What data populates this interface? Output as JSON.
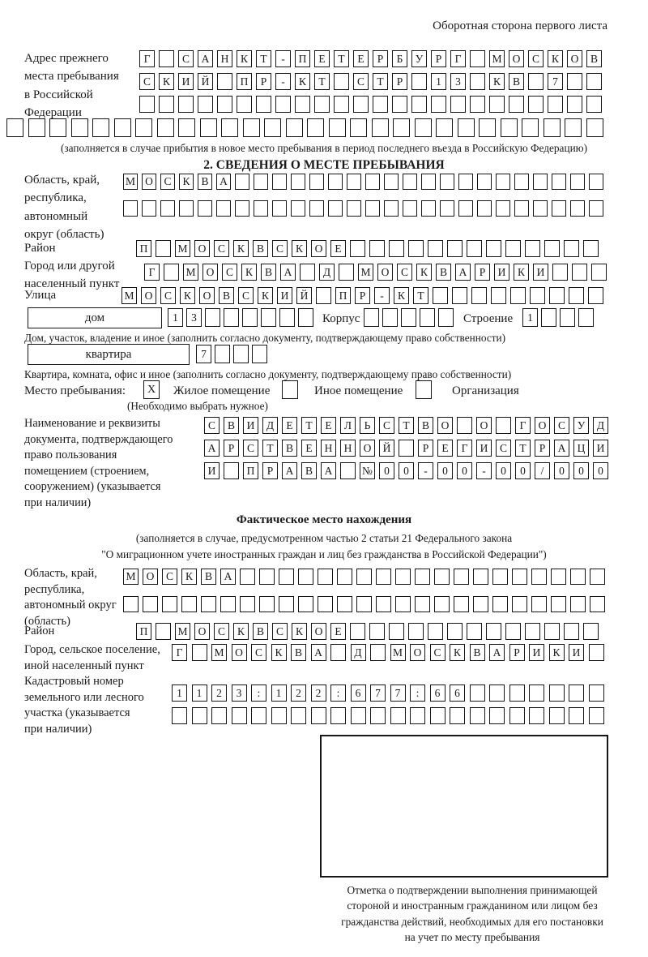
{
  "page_note": "Оборотная сторона первого листа",
  "prev_address": {
    "label_lines": [
      "Адрес прежнего",
      "места пребывания",
      "в Российской",
      "Федерации"
    ],
    "rows": [
      {
        "text": "Г САНКТ-ПЕТЕРБУРГ МОСКОВ",
        "len": 24
      },
      {
        "text": "СКИЙ ПР-КТ СТР 13 КВ 7",
        "len": 24
      },
      {
        "text": "",
        "len": 24
      },
      {
        "text": "",
        "len": 28
      }
    ],
    "note": "(заполняется в случае прибытия в новое место пребывания в период последнего въезда в Российскую Федерацию)"
  },
  "section2": {
    "title": "2. СВЕДЕНИЯ О МЕСТЕ ПРЕБЫВАНИЯ",
    "oblast": {
      "label_lines": [
        "Область, край,",
        "республика,",
        "автономный",
        "округ (область)"
      ],
      "rows": [
        {
          "text": "МОСКВА",
          "len": 26
        },
        {
          "text": "",
          "len": 26
        }
      ]
    },
    "raion": {
      "label": "Район",
      "cells": {
        "text": "П МОСКВСКОЕ",
        "len": 24
      }
    },
    "gorod": {
      "label_lines": [
        "Город или другой",
        "населенный пункт"
      ],
      "cells": {
        "text": "Г МОСКВА Д МОСКВАРИКИ",
        "len": 24
      }
    },
    "ulitsa": {
      "label": "Улица",
      "cells": {
        "text": "МОСКОВСКИЙ ПР-КТ",
        "len": 25
      }
    },
    "dom": {
      "label": "дом",
      "cells": {
        "text": "13",
        "len": 8
      },
      "korpus_label": "Корпус",
      "korpus_cells": {
        "text": "",
        "len": 5
      },
      "stroenie_label": "Строение",
      "stroenie_cells": {
        "text": "1",
        "len": 4
      },
      "note": "Дом, участок, владение и иное (заполнить согласно документу, подтверждающему право собственности)"
    },
    "kvartira": {
      "label": "квартира",
      "cells": {
        "text": "7",
        "len": 4
      },
      "note": "Квартира, комната, офис и иное (заполнить согласно документу, подтверждающему право собственности)"
    },
    "mesto": {
      "label": "Место пребывания:",
      "options": [
        {
          "label": "Жилое помещение",
          "mark": "X"
        },
        {
          "label": "Иное помещение",
          "mark": ""
        },
        {
          "label": "Организация",
          "mark": ""
        }
      ],
      "note": "(Необходимо выбрать нужное)"
    },
    "doc": {
      "label_lines": [
        "Наименование и реквизиты",
        "документа, подтверждающего",
        "право пользования",
        "помещением (строением,",
        "сооружением) (указывается",
        "при наличии)"
      ],
      "rows": [
        {
          "text": "СВИДЕТЕЛЬСТВО О ГОСУД",
          "len": 21
        },
        {
          "text": "АРСТВЕННОЙ РЕГИСТРАЦИ",
          "len": 21
        },
        {
          "text": "И ПРАВА №00-00-00/000",
          "len": 21
        }
      ]
    }
  },
  "fact": {
    "title": "Фактическое место нахождения",
    "notes": [
      "(заполняется в случае, предусмотренном частью 2 статьи 21 Федерального закона",
      "\"О миграционном учете иностранных граждан и лиц без гражданства в Российской Федерации\")"
    ],
    "oblast": {
      "label_lines": [
        "Область, край,",
        "республика,",
        "автономный округ",
        "(область)"
      ],
      "rows": [
        {
          "text": "МОСКВА",
          "len": 25
        },
        {
          "text": "",
          "len": 25
        }
      ]
    },
    "raion": {
      "label": "Район",
      "cells": {
        "text": "П МОСКВСКОЕ",
        "len": 24
      }
    },
    "gorod": {
      "label_lines": [
        "Город, сельское поселение,",
        "иной населенный пункт"
      ],
      "cells": {
        "text": "Г МОСКВА Д МОСКВАРИКИ",
        "len": 22
      }
    },
    "kadastr": {
      "label_lines": [
        "Кадастровый номер",
        "земельного или лесного",
        "участка (указывается",
        "при наличии)"
      ],
      "rows": [
        {
          "text": "1123:122:677:66",
          "len": 22
        },
        {
          "text": "",
          "len": 22
        }
      ]
    },
    "stamp_caption_lines": [
      "Отметка о подтверждении выполнения принимающей",
      "стороной и иностранным гражданином или лицом без",
      "гражданства действий, необходимых для его постановки",
      "на учет по месту пребывания"
    ]
  }
}
